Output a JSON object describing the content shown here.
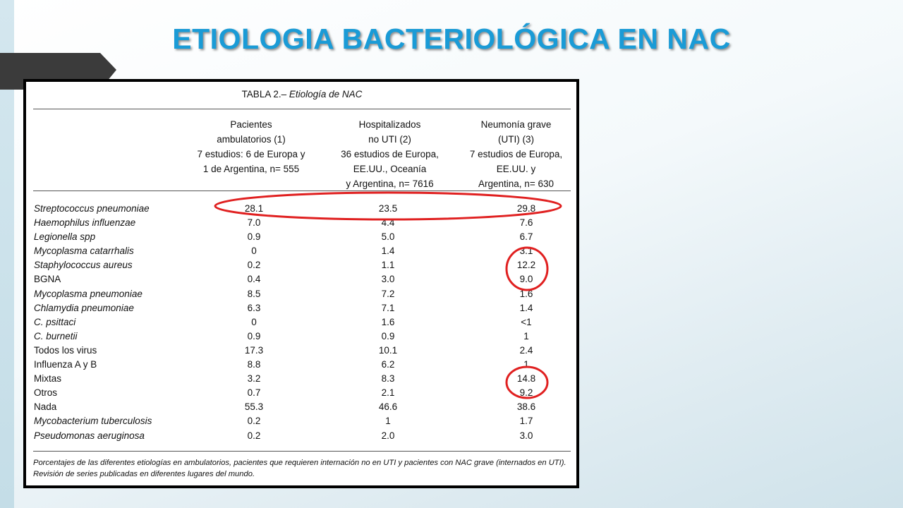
{
  "slide": {
    "title": "ETIOLOGIA BACTERIOLÓGICA EN NAC",
    "accent_color": "#1a9bd6",
    "highlight_color": "#e02020"
  },
  "table": {
    "caption_prefix": "TABLA 2.– ",
    "caption_italic": "Etiología de NAC",
    "columns": [
      "Pacientes\nambulatorios (1)\n7 estudios: 6 de Europa y\n1 de  Argentina, n= 555",
      "Hospitalizados\nno UTI (2)\n36 estudios de Europa,\nEE.UU., Oceanía\ny Argentina, n= 7616",
      "Neumonía grave\n(UTI) (3)\n7 estudios de Europa,\nEE.UU. y\nArgentina, n= 630"
    ],
    "rows": [
      {
        "name": "Streptococcus pneumoniae",
        "v1": "28.1",
        "v2": "23.5",
        "v3": "29.8"
      },
      {
        "name": "Haemophilus influenzae",
        "v1": "7.0",
        "v2": "4.4",
        "v3": "7.6"
      },
      {
        "name": "Legionella spp",
        "v1": "0.9",
        "v2": "5.0",
        "v3": "6.7"
      },
      {
        "name": "Mycoplasma catarrhalis",
        "v1": "0",
        "v2": "1.4",
        "v3": "3.1"
      },
      {
        "name": "Staphylococcus aureus",
        "v1": "0.2",
        "v2": "1.1",
        "v3": "12.2"
      },
      {
        "name": "BGNA",
        "v1": "0.4",
        "v2": "3.0",
        "v3": "9.0"
      },
      {
        "name": "Mycoplasma  pneumoniae",
        "v1": "8.5",
        "v2": "7.2",
        "v3": "1.6"
      },
      {
        "name": "Chlamydia  pneumoniae",
        "v1": "6.3",
        "v2": "7.1",
        "v3": "1.4"
      },
      {
        "name": "C.  psittaci",
        "v1": "0",
        "v2": "1.6",
        "v3": "<1"
      },
      {
        "name": "C.  burnetii",
        "v1": "0.9",
        "v2": "0.9",
        "v3": "1"
      },
      {
        "name": "Todos los virus",
        "v1": "17.3",
        "v2": "10.1",
        "v3": "2.4"
      },
      {
        "name": "Influenza A y B",
        "v1": "8.8",
        "v2": "6.2",
        "v3": "1"
      },
      {
        "name": "Mixtas",
        "v1": "3.2",
        "v2": "8.3",
        "v3": "14.8"
      },
      {
        "name": "Otros",
        "v1": "0.7",
        "v2": "2.1",
        "v3": "9.2"
      },
      {
        "name": "Nada",
        "v1": "55.3",
        "v2": "46.6",
        "v3": "38.6"
      },
      {
        "name": "Mycobacterium tuberculosis",
        "v1": "0.2",
        "v2": "1",
        "v3": "1.7"
      },
      {
        "name": "Pseudomonas aeruginosa",
        "v1": "0.2",
        "v2": "2.0",
        "v3": "3.0"
      }
    ],
    "footnote": "Porcentajes de las diferentes etiologías en ambulatorios, pacientes que requieren internación no en UTI y pacientes con NAC grave (internados en UTI).  Revisión de series publicadas en diferentes lugares del mundo."
  }
}
